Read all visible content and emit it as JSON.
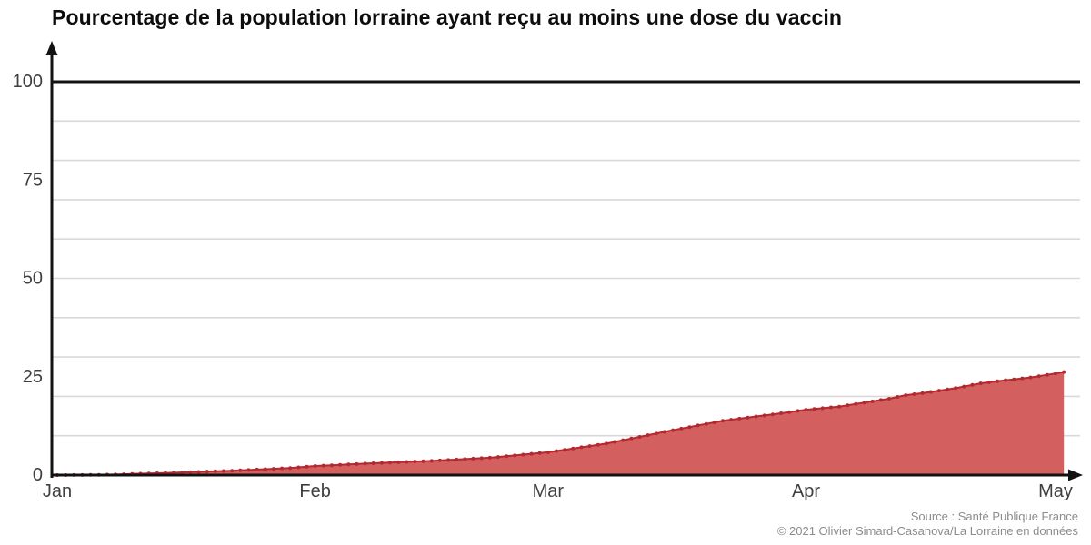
{
  "header": {
    "title": "Pourcentage de la population lorraine ayant reçu au moins une dose du vaccin"
  },
  "footer": {
    "source": "Source : Santé Publique France",
    "copyright": "© 2021 Olivier Simard-Casanova/La Lorraine en données"
  },
  "chart_data": {
    "type": "area",
    "title": "Pourcentage de la population lorraine ayant reçu au moins une dose du vaccin",
    "xlabel": "",
    "ylabel": "",
    "x_axis": {
      "tick_labels": [
        "Jan",
        "Feb",
        "Mar",
        "Apr",
        "May"
      ],
      "tick_day_index": [
        0,
        31,
        59,
        90,
        120
      ],
      "unit": "days from Jan 1, 2021"
    },
    "y_axis": {
      "tick_labels": [
        "0",
        "25",
        "50",
        "75",
        "100"
      ],
      "tick_values": [
        0,
        25,
        50,
        75,
        100
      ],
      "range": [
        0,
        100
      ],
      "gridline_step": 10,
      "emphasized_gridline_value": 100
    },
    "legend": "none",
    "grid": "horizontal-only",
    "series": [
      {
        "name": "pct-population-lorraine-at-least-one-dose",
        "day_index_start": 0,
        "frequency": "daily",
        "last_value_percent": 26.2,
        "values": [
          0,
          0.01,
          0.02,
          0.03,
          0.05,
          0.08,
          0.11,
          0.15,
          0.21,
          0.28,
          0.34,
          0.41,
          0.47,
          0.54,
          0.6,
          0.67,
          0.74,
          0.81,
          0.89,
          0.96,
          1.03,
          1.1,
          1.2,
          1.3,
          1.4,
          1.5,
          1.6,
          1.7,
          1.8,
          1.97,
          2.13,
          2.3,
          2.4,
          2.5,
          2.6,
          2.7,
          2.8,
          2.9,
          3.0,
          3.09,
          3.17,
          3.26,
          3.34,
          3.43,
          3.51,
          3.6,
          3.71,
          3.83,
          3.94,
          4.06,
          4.17,
          4.29,
          4.4,
          4.6,
          4.8,
          5.0,
          5.2,
          5.4,
          5.6,
          5.8,
          6.11,
          6.43,
          6.74,
          7.06,
          7.37,
          7.69,
          8.0,
          8.43,
          8.86,
          9.29,
          9.71,
          10.14,
          10.57,
          11.0,
          11.4,
          11.8,
          12.2,
          12.6,
          13.0,
          13.4,
          13.8,
          14.07,
          14.34,
          14.61,
          14.89,
          15.16,
          15.43,
          15.7,
          16.0,
          16.3,
          16.6,
          16.8,
          17.0,
          17.2,
          17.4,
          17.73,
          18.07,
          18.4,
          18.73,
          19.07,
          19.4,
          19.85,
          20.3,
          20.55,
          20.8,
          21.13,
          21.45,
          21.78,
          22.1,
          22.5,
          22.9,
          23.3,
          23.57,
          23.83,
          24.1,
          24.33,
          24.57,
          24.8,
          25.13,
          25.47,
          25.8,
          26.2
        ]
      }
    ],
    "colors": {
      "line": "#b2292f",
      "fill": "#d45f5f",
      "gridline": "#d9d9d9",
      "axis": "#121212",
      "tick_label": "#3f3f3f"
    }
  }
}
